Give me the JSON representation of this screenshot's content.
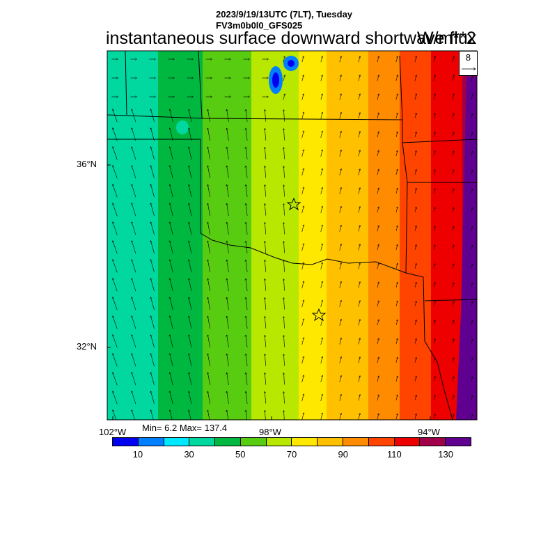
{
  "header": {
    "date_line": "2023/9/19/13UTC (7LT), Tuesday",
    "run_line": "FV3m0b0l0_GFS025",
    "title": "instantaneous surface downward shortwave flux",
    "units": "W/m**2"
  },
  "map": {
    "lat_labels": [
      "36°N",
      "32°N"
    ],
    "lon_labels": [
      "102°W",
      "98°W",
      "94°W"
    ],
    "reference_vector": {
      "value": "8"
    },
    "stars": 2
  },
  "stats": {
    "text": "Min= 6.2 Max= 137.4",
    "min": 6.2,
    "max": 137.4
  },
  "colorbar": {
    "labels": [
      "10",
      "30",
      "50",
      "70",
      "90",
      "110",
      "130"
    ],
    "colors": [
      "#0000f0",
      "#0080ff",
      "#00e8ff",
      "#00d8a0",
      "#00b840",
      "#58cc10",
      "#b8e800",
      "#ffe800",
      "#ffc000",
      "#ff8c00",
      "#ff4400",
      "#ee0000",
      "#a00048",
      "#600090"
    ]
  },
  "chart_data": {
    "type": "heatmap",
    "variable": "instantaneous surface downward shortwave flux",
    "units": "W/m**2",
    "levels": [
      10,
      20,
      30,
      40,
      50,
      60,
      70,
      80,
      90,
      100,
      110,
      120,
      130
    ],
    "min": 6.2,
    "max": 137.4,
    "longitude_labels": [
      "102°W",
      "98°W",
      "94°W"
    ],
    "latitude_labels": [
      "36°N",
      "32°N"
    ],
    "pattern": "increasing west to east"
  }
}
